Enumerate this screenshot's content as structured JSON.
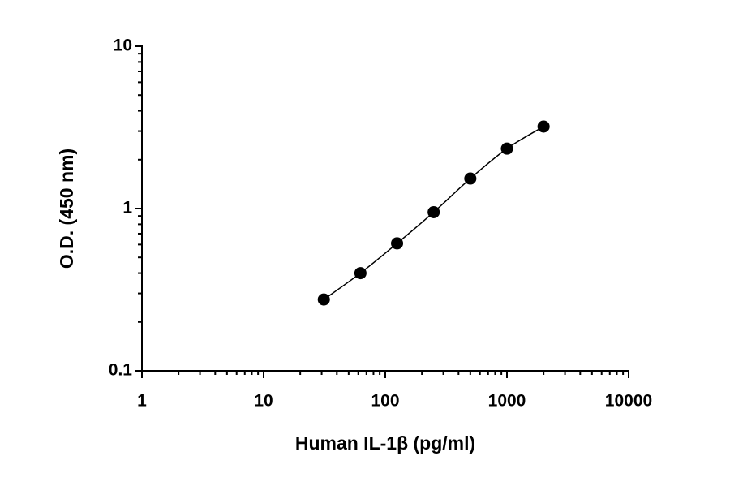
{
  "chart_data": {
    "type": "scatter",
    "x_label": "Human IL-1β (pg/ml)",
    "y_label": "O.D. (450 nm)",
    "x": [
      31.25,
      62.5,
      125,
      250,
      500,
      1000,
      2000
    ],
    "values": [
      0.275,
      0.4,
      0.61,
      0.95,
      1.53,
      2.34,
      3.2
    ],
    "color": "#000000",
    "xlim": [
      1,
      10000
    ],
    "ylim": [
      0.1,
      10
    ],
    "xticks": [
      1,
      10,
      100,
      1000,
      10000
    ],
    "yticks": [
      0.1,
      1,
      10
    ],
    "xscale": "log",
    "yscale": "log",
    "fit_curve": true
  }
}
